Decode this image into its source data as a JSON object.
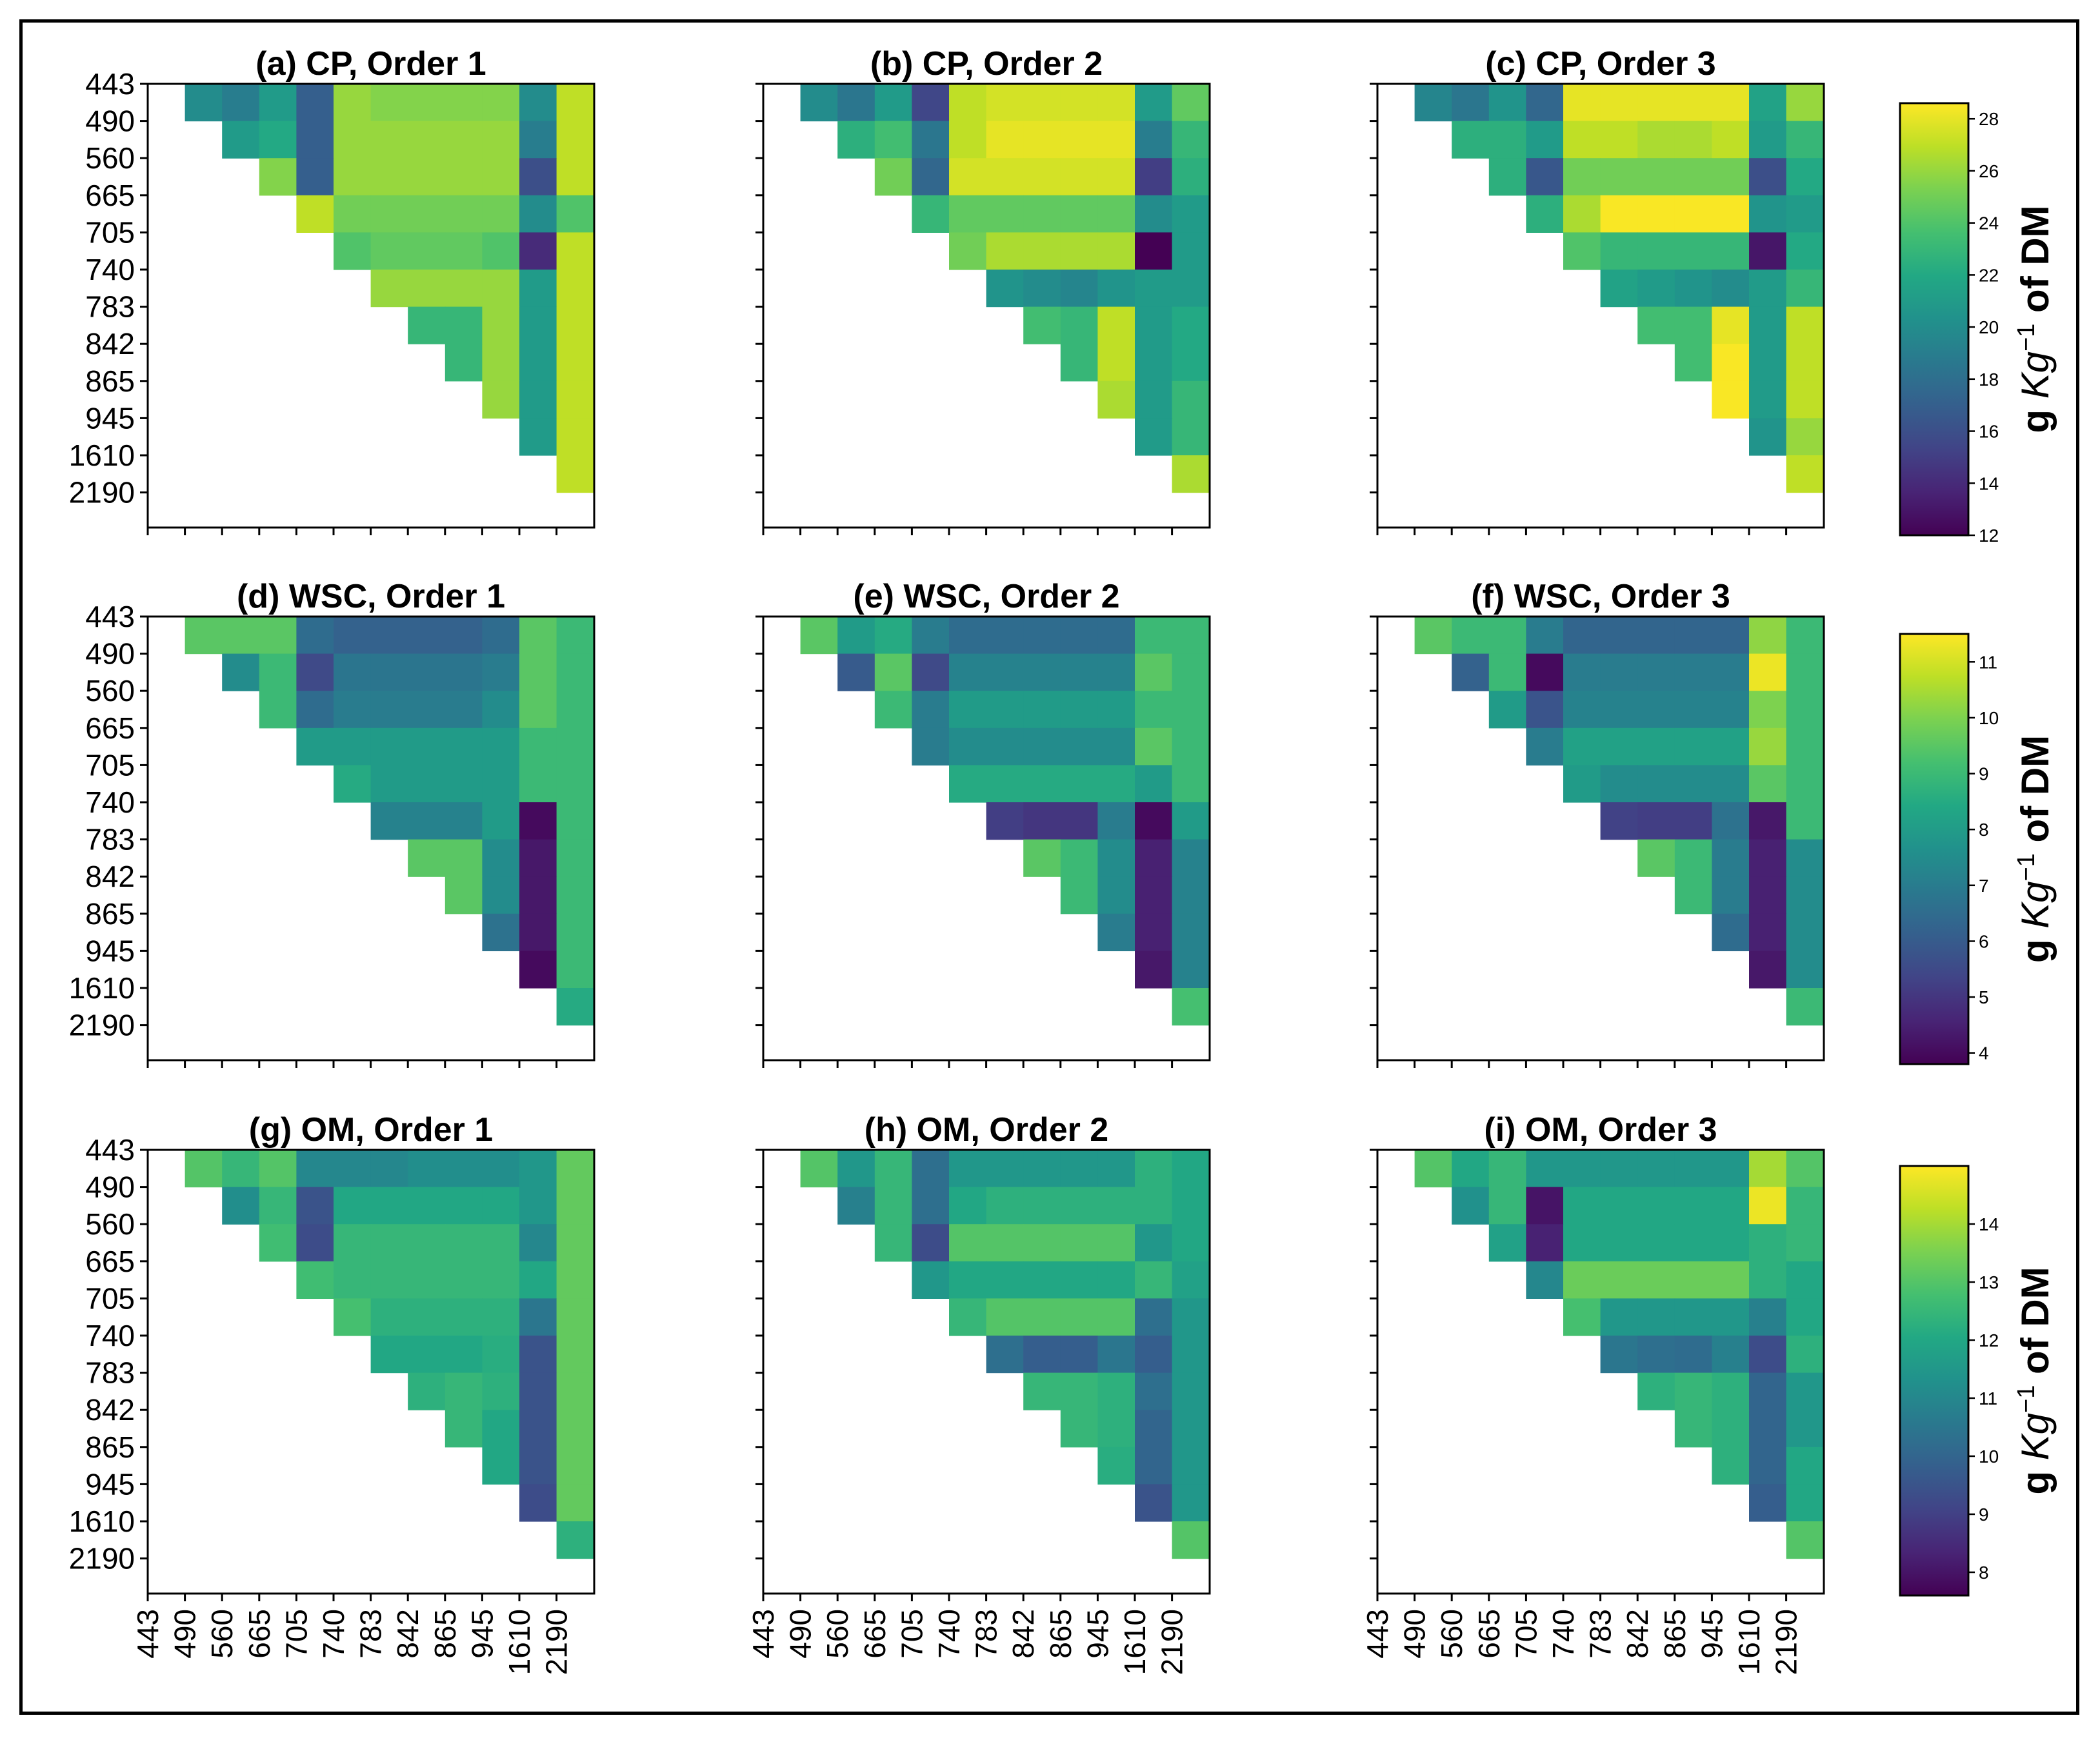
{
  "colors": {
    "frame": "#000000",
    "axis": "#000000",
    "background": "#ffffff"
  },
  "colormap": "viridis",
  "chart_data": {
    "type": "heatmap",
    "wavelengths": [
      "443",
      "490",
      "560",
      "665",
      "705",
      "740",
      "783",
      "842",
      "865",
      "945",
      "1610",
      "2190"
    ],
    "layout": {
      "rows": 3,
      "cols": 3
    },
    "colorbars": [
      {
        "row": 0,
        "label_prefix": "g ",
        "label_italic": "Kg",
        "label_sup": "−1",
        "label_suffix": " of DM",
        "vmin": 12,
        "vmax": 28.6,
        "ticks": [
          12,
          14,
          16,
          18,
          20,
          22,
          24,
          26,
          28
        ]
      },
      {
        "row": 1,
        "label_prefix": "g ",
        "label_italic": "Kg",
        "label_sup": "−1",
        "label_suffix": " of DM",
        "vmin": 3.8,
        "vmax": 11.5,
        "ticks": [
          4,
          5,
          6,
          7,
          8,
          9,
          10,
          11
        ]
      },
      {
        "row": 2,
        "label_prefix": "g ",
        "label_italic": "Kg",
        "label_sup": "−1",
        "label_suffix": " of DM",
        "vmin": 7.6,
        "vmax": 15,
        "ticks": [
          8,
          9,
          10,
          11,
          12,
          13,
          14
        ]
      }
    ],
    "panels": [
      {
        "title": "(a) CP, Order 1",
        "row": 0,
        "col": 0,
        "values": [
          [
            20,
            19,
            21,
            17,
            26,
            25.5,
            25.5,
            25.5,
            25.5,
            20,
            27
          ],
          [
            21,
            22,
            17,
            26,
            26,
            26,
            26,
            26,
            19,
            27
          ],
          [
            25.5,
            17,
            26,
            26,
            26,
            26,
            26,
            16,
            27
          ],
          [
            27,
            25,
            25,
            25,
            25,
            25,
            20,
            24
          ],
          [
            24,
            24.5,
            24.5,
            24.5,
            24,
            14,
            27
          ],
          [
            26,
            26,
            26,
            26,
            21,
            27
          ],
          [
            23,
            23,
            26,
            21,
            27
          ],
          [
            23,
            26,
            21,
            27
          ],
          [
            26,
            21,
            27
          ],
          [
            21,
            27
          ],
          [
            27
          ]
        ]
      },
      {
        "title": "(b) CP, Order 2",
        "row": 0,
        "col": 1,
        "values": [
          [
            20,
            18.5,
            21,
            15.5,
            27,
            27.5,
            27.5,
            27.5,
            27.5,
            21,
            24.5
          ],
          [
            22.5,
            23.5,
            18.5,
            27,
            28,
            28,
            28,
            28,
            19,
            23
          ],
          [
            25,
            17.5,
            27.5,
            27.5,
            27.5,
            27.5,
            27.5,
            15,
            22.5
          ],
          [
            23,
            24.5,
            24.5,
            24.5,
            24.5,
            24.5,
            20,
            21
          ],
          [
            25,
            26.5,
            26.5,
            26.5,
            26.5,
            12,
            21
          ],
          [
            20.5,
            20,
            19.5,
            20.5,
            21,
            21
          ],
          [
            23.5,
            23,
            27,
            21,
            22
          ],
          [
            23,
            27,
            21,
            22
          ],
          [
            26.5,
            21,
            23
          ],
          [
            21,
            23
          ],
          [
            26.5
          ]
        ]
      },
      {
        "title": "(c) CP, Order 3",
        "row": 0,
        "col": 2,
        "values": [
          [
            19.5,
            18.5,
            20.5,
            17.5,
            28,
            28,
            28,
            28,
            28,
            21.5,
            26
          ],
          [
            22.5,
            22.5,
            21,
            27,
            27,
            26.5,
            26.5,
            27,
            21,
            23
          ],
          [
            22.5,
            16.5,
            25,
            25,
            25,
            25,
            25,
            16,
            22
          ],
          [
            22.5,
            26.5,
            28.5,
            28.5,
            28.5,
            28.5,
            20.5,
            21
          ],
          [
            24,
            23,
            23,
            23,
            23,
            13,
            22
          ],
          [
            21.5,
            21,
            20.5,
            20,
            21,
            23
          ],
          [
            23.5,
            23.5,
            28,
            21,
            27
          ],
          [
            23.5,
            28.5,
            21,
            27
          ],
          [
            28.5,
            21,
            27
          ],
          [
            20.5,
            26
          ],
          [
            27
          ]
        ]
      },
      {
        "title": "(d) WSC, Order 1",
        "row": 1,
        "col": 0,
        "values": [
          [
            9.5,
            9.5,
            9.5,
            6.5,
            6.2,
            6.2,
            6.2,
            6.2,
            6.5,
            9.5,
            9
          ],
          [
            7.5,
            9,
            5.5,
            6.8,
            6.8,
            6.8,
            6.8,
            7,
            9.5,
            9
          ],
          [
            9,
            6.5,
            7,
            7,
            7,
            7,
            7.5,
            9.5,
            9
          ],
          [
            8,
            8,
            8,
            8,
            8,
            8,
            9,
            9
          ],
          [
            8.5,
            8,
            8,
            8,
            8,
            9,
            9
          ],
          [
            7.2,
            7.2,
            7.2,
            8,
            4,
            9
          ],
          [
            9.5,
            9.5,
            7.5,
            4.3,
            9
          ],
          [
            9.5,
            7.5,
            4.3,
            9
          ],
          [
            6.7,
            4.3,
            9
          ],
          [
            4,
            9
          ],
          [
            8.5
          ]
        ]
      },
      {
        "title": "(e) WSC, Order 2",
        "row": 1,
        "col": 1,
        "values": [
          [
            9.5,
            8,
            8.5,
            7,
            6.5,
            6.5,
            6.5,
            6.5,
            6.5,
            9,
            9
          ],
          [
            6,
            9.5,
            5.5,
            7.2,
            7.2,
            7.2,
            7.2,
            7.2,
            9.5,
            9
          ],
          [
            9,
            7,
            8,
            8,
            8,
            8,
            8,
            9,
            9
          ],
          [
            7,
            7.5,
            7.5,
            7.5,
            7.5,
            7.5,
            9.5,
            9
          ],
          [
            8.5,
            8.5,
            8.5,
            8.5,
            8.5,
            8,
            9
          ],
          [
            5.2,
            5,
            5,
            7,
            4,
            8
          ],
          [
            9.5,
            9,
            7.5,
            4.5,
            7.2
          ],
          [
            9,
            7.5,
            4.5,
            7.2
          ],
          [
            7,
            4.5,
            7.2
          ],
          [
            4.3,
            7.2
          ],
          [
            9.2
          ]
        ]
      },
      {
        "title": "(f) WSC, Order 3",
        "row": 1,
        "col": 2,
        "values": [
          [
            9.5,
            9,
            9,
            7,
            6.3,
            6.3,
            6.3,
            6.3,
            6.3,
            10.2,
            9
          ],
          [
            6.2,
            9,
            4,
            7,
            7,
            7,
            7,
            7,
            11.3,
            9
          ],
          [
            8,
            5.8,
            7.2,
            7.2,
            7.2,
            7.2,
            7.2,
            10,
            9
          ],
          [
            7,
            8.2,
            8.2,
            8.2,
            8.2,
            8.2,
            10.3,
            9
          ],
          [
            8,
            7.5,
            7.5,
            7.5,
            7.5,
            9.5,
            9
          ],
          [
            5.3,
            5.2,
            5.2,
            6.7,
            4.3,
            9
          ],
          [
            9.5,
            9,
            7,
            4.5,
            7.5
          ],
          [
            9,
            7,
            4.5,
            7.5
          ],
          [
            6.5,
            4.5,
            7.5
          ],
          [
            4.3,
            7.5
          ],
          [
            9
          ]
        ]
      },
      {
        "title": "(g) OM, Order 1",
        "row": 2,
        "col": 0,
        "values": [
          [
            13,
            12.5,
            13,
            11,
            11,
            11,
            11.2,
            11.2,
            11.2,
            11.5,
            13.2
          ],
          [
            11.2,
            12.5,
            9.5,
            12,
            12,
            12,
            12,
            12,
            11.5,
            13.2
          ],
          [
            12.7,
            9.3,
            12.5,
            12.5,
            12.5,
            12.5,
            12.5,
            11,
            13.2
          ],
          [
            12.7,
            12.5,
            12.5,
            12.5,
            12.5,
            12.5,
            12,
            13.2
          ],
          [
            12.8,
            12.3,
            12.3,
            12.3,
            12.3,
            10.5,
            13.2
          ],
          [
            12,
            12,
            12,
            12.2,
            9.5,
            13.2
          ],
          [
            12.3,
            12.5,
            12.3,
            9.5,
            13.2
          ],
          [
            12.5,
            12,
            9.5,
            13.2
          ],
          [
            12,
            9.5,
            13.2
          ],
          [
            9.3,
            13.2
          ],
          [
            12.3
          ]
        ]
      },
      {
        "title": "(h) OM, Order 2",
        "row": 2,
        "col": 1,
        "values": [
          [
            13,
            11.5,
            12.5,
            10.3,
            11.5,
            11.5,
            11.5,
            11.5,
            11.5,
            12.3,
            12
          ],
          [
            10.8,
            12.5,
            10.3,
            12,
            12.3,
            12.3,
            12.3,
            12.3,
            12.3,
            12
          ],
          [
            12.5,
            9.3,
            13,
            13,
            13,
            13,
            13,
            11.5,
            12
          ],
          [
            11.5,
            12,
            12,
            12,
            12,
            12,
            12.5,
            11.8
          ],
          [
            12.5,
            13,
            13,
            13,
            13,
            10.3,
            11.5
          ],
          [
            10.3,
            9.8,
            9.8,
            10.5,
            9.8,
            11.5
          ],
          [
            12.5,
            12.5,
            12.3,
            10.3,
            11.5
          ],
          [
            12.5,
            12.3,
            10,
            11.5
          ],
          [
            12.2,
            10,
            11.5
          ],
          [
            9.5,
            11.5
          ],
          [
            13
          ]
        ]
      },
      {
        "title": "(i) OM, Order 3",
        "row": 2,
        "col": 2,
        "values": [
          [
            13,
            12,
            12.5,
            11.5,
            11.5,
            11.5,
            11.5,
            11.5,
            11.5,
            14,
            13
          ],
          [
            11.3,
            12.5,
            8,
            12,
            12,
            12,
            12,
            12,
            14.8,
            12.5
          ],
          [
            11.8,
            8.3,
            12,
            12,
            12,
            12,
            12,
            12.3,
            12.5
          ],
          [
            11,
            13.3,
            13.3,
            13.3,
            13.3,
            13.3,
            12.3,
            12
          ],
          [
            12.8,
            11.5,
            11.5,
            11.5,
            11.5,
            10.8,
            12
          ],
          [
            10.5,
            10.3,
            10.2,
            10.8,
            9.3,
            12.3
          ],
          [
            12.3,
            12.5,
            12.3,
            10,
            11.5
          ],
          [
            12.5,
            12.3,
            10,
            11.5
          ],
          [
            12.3,
            10,
            12
          ],
          [
            9.8,
            12
          ],
          [
            13
          ]
        ]
      }
    ]
  }
}
